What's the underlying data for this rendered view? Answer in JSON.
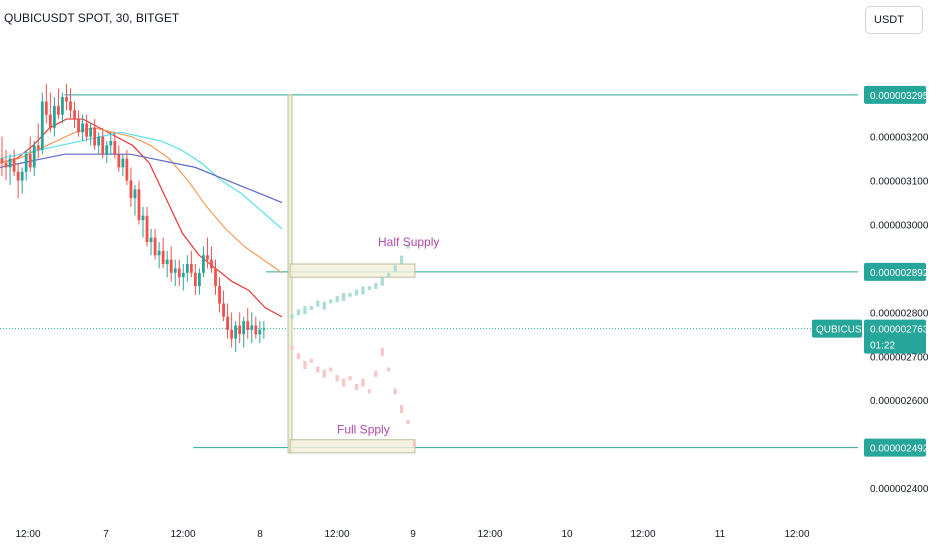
{
  "header": {
    "title": "QUBICUSDT SPOT, 30, BITGET",
    "currency": "USDT"
  },
  "colors": {
    "up": "#26a69a",
    "down": "#ef5350",
    "up_projection": "#a8dcd4",
    "down_projection": "#f7c5c5",
    "level_line": "#26a69a",
    "price_tag": "#26a69a",
    "box_border": "#b9bfa0",
    "box_fill": "#f4f1d8",
    "annotation": "#b048a8",
    "ma_fast": "#e53935",
    "ma_mid": "#f39c5a",
    "ma_slow": "#5ee0ea",
    "ma_long": "#5c6bc0"
  },
  "chart_data": {
    "type": "candlestick",
    "symbol": "QUBICUSDT",
    "interval": "30",
    "exchange": "BITGET",
    "y_axis": {
      "ticks": [
        {
          "value": 3.2e-07,
          "label": "0.000003200"
        },
        {
          "value": 3.1e-07,
          "label": "0.000003100"
        },
        {
          "value": 3e-07,
          "label": "0.000003000"
        },
        {
          "value": 2.8e-07,
          "label": "0.000002800"
        },
        {
          "value": 2.7e-07,
          "label": "0.000002700"
        },
        {
          "value": 2.6e-07,
          "label": "0.000002600"
        },
        {
          "value": 2.4e-07,
          "label": "0.000002400"
        }
      ],
      "range": [
        2.35e-07,
        3.42e-07
      ]
    },
    "x_axis": {
      "labels": [
        "12:00",
        "7",
        "12:00",
        "8",
        "12:00",
        "9",
        "12:00",
        "10",
        "12:00",
        "11",
        "12:00"
      ],
      "range_bars": [
        0,
        213
      ]
    },
    "levels": [
      {
        "price": 3.295e-07,
        "label": "0.000003295",
        "start_bar": 16
      },
      {
        "price": 2.892e-07,
        "label": "0.000002892",
        "start_bar": 66
      },
      {
        "price": 2.492e-07,
        "label": "0.000002492",
        "start_bar": 48
      }
    ],
    "current_price": {
      "symbol_tag": "QUBICUSDT",
      "price": 2.763e-07,
      "label": "0.000002763",
      "countdown": "01:22"
    },
    "zones": [
      {
        "name": "Half Supply",
        "label": "Half Supply",
        "bar_start": 72,
        "bar_end": 103,
        "price_top": 2.91e-07,
        "price_bottom": 2.88e-07
      },
      {
        "name": "Full Spply",
        "label": "Full Spply",
        "bar_start": 72,
        "bar_end": 103,
        "price_top": 2.51e-07,
        "price_bottom": 2.48e-07
      }
    ],
    "vertical_marker": {
      "bar": 72,
      "price_top": 3.295e-07,
      "price_bottom": 2.48e-07
    },
    "candles": [
      {
        "o": 3.15e-07,
        "h": 3.2e-07,
        "l": 3.11e-07,
        "c": 3.14e-07
      },
      {
        "o": 3.14e-07,
        "h": 3.17e-07,
        "l": 3.1e-07,
        "c": 3.13e-07
      },
      {
        "o": 3.13e-07,
        "h": 3.16e-07,
        "l": 3.09e-07,
        "c": 3.15e-07
      },
      {
        "o": 3.15e-07,
        "h": 3.17e-07,
        "l": 3.11e-07,
        "c": 3.12e-07
      },
      {
        "o": 3.12e-07,
        "h": 3.14e-07,
        "l": 3.06e-07,
        "c": 3.1e-07
      },
      {
        "o": 3.1e-07,
        "h": 3.13e-07,
        "l": 3.07e-07,
        "c": 3.12e-07
      },
      {
        "o": 3.12e-07,
        "h": 3.17e-07,
        "l": 3.1e-07,
        "c": 3.16e-07
      },
      {
        "o": 3.16e-07,
        "h": 3.2e-07,
        "l": 3.12e-07,
        "c": 3.13e-07
      },
      {
        "o": 3.13e-07,
        "h": 3.19e-07,
        "l": 3.11e-07,
        "c": 3.18e-07
      },
      {
        "o": 3.18e-07,
        "h": 3.23e-07,
        "l": 3.15e-07,
        "c": 3.17e-07
      },
      {
        "o": 3.17e-07,
        "h": 3.3e-07,
        "l": 3.16e-07,
        "c": 3.28e-07
      },
      {
        "o": 3.28e-07,
        "h": 3.32e-07,
        "l": 3.23e-07,
        "c": 3.25e-07
      },
      {
        "o": 3.25e-07,
        "h": 3.3e-07,
        "l": 3.21e-07,
        "c": 3.22e-07
      },
      {
        "o": 3.22e-07,
        "h": 3.29e-07,
        "l": 3.2e-07,
        "c": 3.27e-07
      },
      {
        "o": 3.27e-07,
        "h": 3.31e-07,
        "l": 3.24e-07,
        "c": 3.25e-07
      },
      {
        "o": 3.25e-07,
        "h": 3.3e-07,
        "l": 3.23e-07,
        "c": 3.29e-07
      },
      {
        "o": 3.29e-07,
        "h": 3.32e-07,
        "l": 3.26e-07,
        "c": 3.28e-07
      },
      {
        "o": 3.28e-07,
        "h": 3.31e-07,
        "l": 3.24e-07,
        "c": 3.26e-07
      },
      {
        "o": 3.26e-07,
        "h": 3.28e-07,
        "l": 3.22e-07,
        "c": 3.24e-07
      },
      {
        "o": 3.24e-07,
        "h": 3.26e-07,
        "l": 3.2e-07,
        "c": 3.21e-07
      },
      {
        "o": 3.21e-07,
        "h": 3.25e-07,
        "l": 3.19e-07,
        "c": 3.23e-07
      },
      {
        "o": 3.23e-07,
        "h": 3.25e-07,
        "l": 3.19e-07,
        "c": 3.2e-07
      },
      {
        "o": 3.2e-07,
        "h": 3.23e-07,
        "l": 3.18e-07,
        "c": 3.22e-07
      },
      {
        "o": 3.22e-07,
        "h": 3.24e-07,
        "l": 3.17e-07,
        "c": 3.18e-07
      },
      {
        "o": 3.18e-07,
        "h": 3.21e-07,
        "l": 3.16e-07,
        "c": 3.2e-07
      },
      {
        "o": 3.2e-07,
        "h": 3.22e-07,
        "l": 3.15e-07,
        "c": 3.16e-07
      },
      {
        "o": 3.16e-07,
        "h": 3.19e-07,
        "l": 3.14e-07,
        "c": 3.18e-07
      },
      {
        "o": 3.18e-07,
        "h": 3.21e-07,
        "l": 3.16e-07,
        "c": 3.19e-07
      },
      {
        "o": 3.19e-07,
        "h": 3.21e-07,
        "l": 3.15e-07,
        "c": 3.16e-07
      },
      {
        "o": 3.16e-07,
        "h": 3.18e-07,
        "l": 3.12e-07,
        "c": 3.13e-07
      },
      {
        "o": 3.13e-07,
        "h": 3.16e-07,
        "l": 3.11e-07,
        "c": 3.15e-07
      },
      {
        "o": 3.15e-07,
        "h": 3.17e-07,
        "l": 3.09e-07,
        "c": 3.1e-07
      },
      {
        "o": 3.1e-07,
        "h": 3.13e-07,
        "l": 3.04e-07,
        "c": 3.06e-07
      },
      {
        "o": 3.06e-07,
        "h": 3.09e-07,
        "l": 3.02e-07,
        "c": 3.08e-07
      },
      {
        "o": 3.08e-07,
        "h": 3.1e-07,
        "l": 3e-07,
        "c": 3.01e-07
      },
      {
        "o": 3.01e-07,
        "h": 3.04e-07,
        "l": 2.97e-07,
        "c": 3.02e-07
      },
      {
        "o": 3.02e-07,
        "h": 3.04e-07,
        "l": 2.95e-07,
        "c": 2.96e-07
      },
      {
        "o": 2.96e-07,
        "h": 2.99e-07,
        "l": 2.93e-07,
        "c": 2.97e-07
      },
      {
        "o": 2.97e-07,
        "h": 2.99e-07,
        "l": 2.92e-07,
        "c": 2.93e-07
      },
      {
        "o": 2.93e-07,
        "h": 2.96e-07,
        "l": 2.9e-07,
        "c": 2.94e-07
      },
      {
        "o": 2.94e-07,
        "h": 2.97e-07,
        "l": 2.9e-07,
        "c": 2.91e-07
      },
      {
        "o": 2.91e-07,
        "h": 2.94e-07,
        "l": 2.88e-07,
        "c": 2.92e-07
      },
      {
        "o": 2.92e-07,
        "h": 2.95e-07,
        "l": 2.87e-07,
        "c": 2.89e-07
      },
      {
        "o": 2.89e-07,
        "h": 2.92e-07,
        "l": 2.86e-07,
        "c": 2.9e-07
      },
      {
        "o": 2.9e-07,
        "h": 2.92e-07,
        "l": 2.86e-07,
        "c": 2.88e-07
      },
      {
        "o": 2.88e-07,
        "h": 2.91e-07,
        "l": 2.85e-07,
        "c": 2.89e-07
      },
      {
        "o": 2.89e-07,
        "h": 2.93e-07,
        "l": 2.87e-07,
        "c": 2.91e-07
      },
      {
        "o": 2.91e-07,
        "h": 2.94e-07,
        "l": 2.88e-07,
        "c": 2.89e-07
      },
      {
        "o": 2.89e-07,
        "h": 2.91e-07,
        "l": 2.84e-07,
        "c": 2.86e-07
      },
      {
        "o": 2.86e-07,
        "h": 2.9e-07,
        "l": 2.84e-07,
        "c": 2.89e-07
      },
      {
        "o": 2.89e-07,
        "h": 2.95e-07,
        "l": 2.88e-07,
        "c": 2.93e-07
      },
      {
        "o": 2.93e-07,
        "h": 2.97e-07,
        "l": 2.9e-07,
        "c": 2.92e-07
      },
      {
        "o": 2.92e-07,
        "h": 2.95e-07,
        "l": 2.89e-07,
        "c": 2.9e-07
      },
      {
        "o": 2.9e-07,
        "h": 2.92e-07,
        "l": 2.84e-07,
        "c": 2.86e-07
      },
      {
        "o": 2.86e-07,
        "h": 2.88e-07,
        "l": 2.8e-07,
        "c": 2.82e-07
      },
      {
        "o": 2.82e-07,
        "h": 2.85e-07,
        "l": 2.78e-07,
        "c": 2.79e-07
      },
      {
        "o": 2.79e-07,
        "h": 2.82e-07,
        "l": 2.74e-07,
        "c": 2.76e-07
      },
      {
        "o": 2.76e-07,
        "h": 2.8e-07,
        "l": 2.72e-07,
        "c": 2.74e-07
      },
      {
        "o": 2.74e-07,
        "h": 2.78e-07,
        "l": 2.71e-07,
        "c": 2.77e-07
      },
      {
        "o": 2.77e-07,
        "h": 2.8e-07,
        "l": 2.73e-07,
        "c": 2.75e-07
      },
      {
        "o": 2.75e-07,
        "h": 2.79e-07,
        "l": 2.72e-07,
        "c": 2.78e-07
      },
      {
        "o": 2.78e-07,
        "h": 2.81e-07,
        "l": 2.74e-07,
        "c": 2.76e-07
      },
      {
        "o": 2.76e-07,
        "h": 2.8e-07,
        "l": 2.73e-07,
        "c": 2.77e-07
      },
      {
        "o": 2.77e-07,
        "h": 2.79e-07,
        "l": 2.74e-07,
        "c": 2.75e-07
      },
      {
        "o": 2.75e-07,
        "h": 2.78e-07,
        "l": 2.73e-07,
        "c": 2.76e-07
      },
      {
        "o": 2.76e-07,
        "h": 2.78e-07,
        "l": 2.74e-07,
        "c": 2.763e-07
      }
    ],
    "projection_up": [
      2.79e-07,
      2.8e-07,
      2.805e-07,
      2.81e-07,
      2.82e-07,
      2.815e-07,
      2.825e-07,
      2.83e-07,
      2.835e-07,
      2.84e-07,
      2.845e-07,
      2.85e-07,
      2.855e-07,
      2.86e-07,
      2.87e-07,
      2.885e-07,
      2.9e-07,
      2.92e-07,
      2.95e-07
    ],
    "projection_down": [
      2.72e-07,
      2.7e-07,
      2.68e-07,
      2.69e-07,
      2.67e-07,
      2.66e-07,
      2.67e-07,
      2.65e-07,
      2.64e-07,
      2.65e-07,
      2.63e-07,
      2.64e-07,
      2.62e-07,
      2.66e-07,
      2.71e-07,
      2.67e-07,
      2.62e-07,
      2.58e-07,
      2.55e-07,
      2.5e-07
    ],
    "moving_averages": [
      {
        "name": "ma_fast",
        "values": [
          3.14e-07,
          3.15e-07,
          3.18e-07,
          3.22e-07,
          3.24e-07,
          3.24e-07,
          3.22e-07,
          3.2e-07,
          3.18e-07,
          3.14e-07,
          3.06e-07,
          2.98e-07,
          2.93e-07,
          2.9e-07,
          2.87e-07,
          2.85e-07,
          2.81e-07,
          2.79e-07
        ]
      },
      {
        "name": "ma_mid",
        "values": [
          3.14e-07,
          3.15e-07,
          3.17e-07,
          3.19e-07,
          3.21e-07,
          3.22e-07,
          3.21e-07,
          3.2e-07,
          3.18e-07,
          3.15e-07,
          3.1e-07,
          3.04e-07,
          2.99e-07,
          2.95e-07,
          2.92e-07,
          2.89e-07
        ]
      },
      {
        "name": "ma_slow",
        "values": [
          3.15e-07,
          3.16e-07,
          3.17e-07,
          3.18e-07,
          3.19e-07,
          3.2e-07,
          3.21e-07,
          3.2e-07,
          3.19e-07,
          3.17e-07,
          3.14e-07,
          3.1e-07,
          3.07e-07,
          3.03e-07,
          2.99e-07
        ]
      },
      {
        "name": "ma_long",
        "values": [
          3.13e-07,
          3.14e-07,
          3.15e-07,
          3.16e-07,
          3.16e-07,
          3.16e-07,
          3.16e-07,
          3.15e-07,
          3.14e-07,
          3.13e-07,
          3.11e-07,
          3.09e-07,
          3.07e-07,
          3.05e-07
        ]
      }
    ]
  }
}
